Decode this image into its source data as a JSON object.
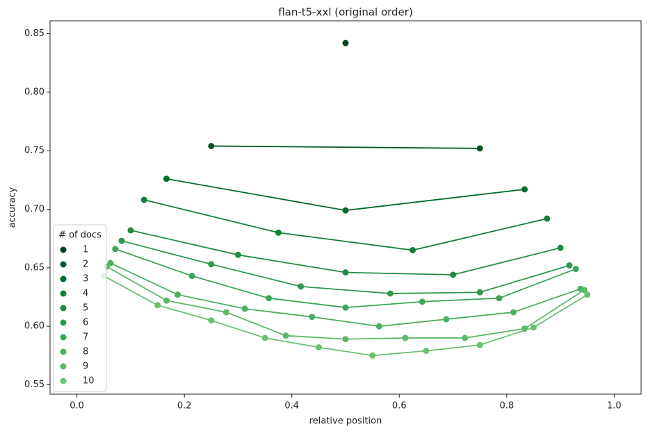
{
  "chart_data": {
    "type": "line",
    "title": "flan-t5-xxl (original order)",
    "x_label": "relative position",
    "y_label": "accuracy",
    "legend_title": "# of docs",
    "legend": "lower left",
    "marker": true,
    "xlim": [
      -0.05,
      1.05
    ],
    "xticks": [
      {
        "value": 0,
        "label": "0.0"
      },
      0.2,
      0.4,
      0.6,
      0.8,
      {
        "value": 1,
        "label": "1.0"
      }
    ],
    "ylim": [
      0.542,
      0.861
    ],
    "yticks": [
      0.55,
      {
        "value": 0.6,
        "label": "0.60"
      },
      0.65,
      {
        "value": 0.7,
        "label": "0.70"
      },
      0.75,
      {
        "value": 0.8,
        "label": "0.80"
      },
      0.85
    ],
    "series": [
      {
        "name": "1",
        "color": "#00441b",
        "x": [
          0.5
        ],
        "values": [
          0.842
        ]
      },
      {
        "name": "2",
        "color": "#005723",
        "x": [
          0.25,
          0.75
        ],
        "values": [
          0.754,
          0.752
        ]
      },
      {
        "name": "3",
        "color": "#006b2b",
        "x": [
          0.1667,
          0.5,
          0.8333
        ],
        "values": [
          0.726,
          0.699,
          0.717
        ]
      },
      {
        "name": "4",
        "color": "#137d39",
        "x": [
          0.125,
          0.375,
          0.625,
          0.875
        ],
        "values": [
          0.708,
          0.68,
          0.665,
          0.692
        ]
      },
      {
        "name": "5",
        "color": "#238b45",
        "x": [
          0.1,
          0.3,
          0.5,
          0.7,
          0.9
        ],
        "values": [
          0.682,
          0.661,
          0.646,
          0.644,
          0.667
        ]
      },
      {
        "name": "6",
        "color": "#2f974e",
        "x": [
          0.0833,
          0.25,
          0.4167,
          0.5833,
          0.75,
          0.9167
        ],
        "values": [
          0.673,
          0.653,
          0.634,
          0.628,
          0.629,
          0.652
        ]
      },
      {
        "name": "7",
        "color": "#3ca559",
        "x": [
          0.0714,
          0.2143,
          0.3571,
          0.5,
          0.6429,
          0.7857,
          0.9286
        ],
        "values": [
          0.666,
          0.643,
          0.624,
          0.616,
          0.621,
          0.624,
          0.649
        ]
      },
      {
        "name": "8",
        "color": "#4bb062",
        "x": [
          0.0625,
          0.1875,
          0.3125,
          0.4375,
          0.5625,
          0.6875,
          0.8125,
          0.9375
        ],
        "values": [
          0.654,
          0.627,
          0.615,
          0.608,
          0.6,
          0.606,
          0.612,
          0.632
        ]
      },
      {
        "name": "9",
        "color": "#5bb86a",
        "x": [
          0.0556,
          0.1667,
          0.2778,
          0.3889,
          0.5,
          0.6111,
          0.7222,
          0.8333,
          0.9444
        ],
        "values": [
          0.651,
          0.622,
          0.612,
          0.592,
          0.589,
          0.59,
          0.59,
          0.598,
          0.631
        ]
      },
      {
        "name": "10",
        "color": "#6bc072",
        "x": [
          0.05,
          0.15,
          0.25,
          0.35,
          0.45,
          0.55,
          0.65,
          0.75,
          0.85,
          0.95
        ],
        "values": [
          0.643,
          0.618,
          0.605,
          0.59,
          0.582,
          0.575,
          0.579,
          0.584,
          0.599,
          0.627
        ]
      }
    ]
  }
}
